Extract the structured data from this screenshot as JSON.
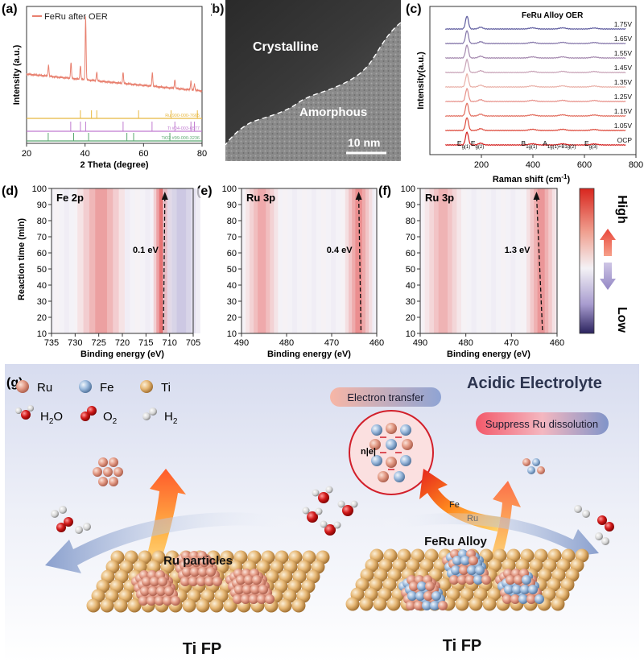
{
  "panel_labels": {
    "a": "(a)",
    "b": "(b)",
    "c": "(c)",
    "d": "(d)",
    "e": "(e)",
    "f": "(f)",
    "g": "(g)"
  },
  "chart_data": [
    {
      "id": "a",
      "type": "line",
      "xlabel": "2 Theta (degree)",
      "ylabel": "Intensity (a.u.)",
      "xlim": [
        20,
        80
      ],
      "xticks": [
        20,
        40,
        60,
        80
      ],
      "legend": "FeRu after OER",
      "legend_position": "top-left",
      "series_color": "#e8806f",
      "peaks": [
        {
          "x": 27.5,
          "y": 0.18
        },
        {
          "x": 35.2,
          "y": 0.26
        },
        {
          "x": 38.4,
          "y": 0.22
        },
        {
          "x": 40.2,
          "y": 1.0
        },
        {
          "x": 44.0,
          "y": 0.14
        },
        {
          "x": 53.0,
          "y": 0.18
        },
        {
          "x": 63.0,
          "y": 0.22
        },
        {
          "x": 70.7,
          "y": 0.14
        },
        {
          "x": 76.2,
          "y": 0.14
        },
        {
          "x": 77.4,
          "y": 0.1
        }
      ],
      "references": [
        {
          "name": "Ru 900-000-7665",
          "color": "#e8b840",
          "sticks": [
            38.4,
            42.2,
            44.0,
            58.3,
            69.4,
            78.4
          ]
        },
        {
          "name": "Ti #04-003-6577",
          "color": "#c07bd0",
          "sticks": [
            35.1,
            38.4,
            40.2,
            53.0,
            62.9,
            70.7,
            76.2,
            77.4
          ]
        },
        {
          "name": "TiO2 #99-000-3236",
          "color": "#5aa870",
          "sticks": [
            27.4,
            36.1,
            41.2,
            54.3,
            56.6,
            69.0
          ]
        }
      ]
    },
    {
      "id": "c",
      "type": "line",
      "title": "FeRu Alloy  OER",
      "xlabel": "Raman shift (cm-1)",
      "ylabel": "Intensity(a.u.)",
      "xlim": [
        0,
        800
      ],
      "xticks": [
        200,
        400,
        600,
        800
      ],
      "series": [
        {
          "name": "OCP",
          "color": "#d4201f"
        },
        {
          "name": "1.05V",
          "color": "#dd4a3c"
        },
        {
          "name": "1.15V",
          "color": "#e26d5e"
        },
        {
          "name": "1.25V",
          "color": "#e7918a"
        },
        {
          "name": "1.35V",
          "color": "#e9b0a8"
        },
        {
          "name": "1.45V",
          "color": "#c8a3b7"
        },
        {
          "name": "1.55V",
          "color": "#a488ae"
        },
        {
          "name": "1.65V",
          "color": "#8374a8"
        },
        {
          "name": "1.75V",
          "color": "#5e5c9f"
        }
      ],
      "peak_labels": [
        {
          "text": "Eg(1)",
          "x": 144
        },
        {
          "text": "Eg(2)",
          "x": 197
        },
        {
          "text": "B1g(1)",
          "x": 398
        },
        {
          "text": "A1g(1)+B1g(2)",
          "x": 515
        },
        {
          "text": "Eg(3)",
          "x": 638
        }
      ]
    },
    {
      "id": "d",
      "type": "heatmap",
      "title": "Fe 2p",
      "xlabel": "Binding energy (eV)",
      "ylabel": "Reaction time (min)",
      "xlim": [
        735,
        705
      ],
      "xticks": [
        735,
        730,
        725,
        720,
        715,
        710,
        705
      ],
      "ylim": [
        10,
        100
      ],
      "yticks": [
        10,
        20,
        30,
        40,
        50,
        60,
        70,
        80,
        90,
        100
      ],
      "annotation": "0.1 eV",
      "bands": [
        {
          "center": 724.5,
          "width": 2.5,
          "level": 0.45
        },
        {
          "center": 711.0,
          "width": 1.2,
          "level": 0.95
        },
        {
          "center": 707.5,
          "width": 2.0,
          "level": -0.45
        }
      ],
      "arrow": {
        "x_start": 711.3,
        "x_end": 711.0
      }
    },
    {
      "id": "e",
      "type": "heatmap",
      "title": "Ru 3p",
      "xlabel": "Binding energy (eV)",
      "xlim": [
        490,
        460
      ],
      "xticks": [
        490,
        480,
        470,
        460
      ],
      "ylim": [
        10,
        100
      ],
      "yticks": [
        10,
        20,
        30,
        40,
        50,
        60,
        70,
        80,
        90,
        100
      ],
      "annotation": "0.4 eV",
      "bands": [
        {
          "center": 485.5,
          "width": 1.8,
          "level": 0.4
        },
        {
          "center": 464.0,
          "width": 1.5,
          "level": 0.55
        }
      ],
      "arrow": {
        "x_start": 463.5,
        "x_end": 464.0
      }
    },
    {
      "id": "f",
      "type": "heatmap",
      "title": "Ru 3p",
      "xlabel": "Binding energy (eV)",
      "xlim": [
        490,
        460
      ],
      "xticks": [
        490,
        480,
        470,
        460
      ],
      "ylim": [
        10,
        100
      ],
      "yticks": [
        10,
        20,
        30,
        40,
        50,
        60,
        70,
        80,
        90,
        100
      ],
      "annotation": "1.3 eV",
      "bands": [
        {
          "center": 485.0,
          "width": 2.0,
          "level": 0.35
        },
        {
          "center": 463.5,
          "width": 1.6,
          "level": 0.5
        }
      ],
      "arrow": {
        "x_start": 463.2,
        "x_end": 464.5
      }
    }
  ],
  "panel_b": {
    "label_top": "Crystalline",
    "label_bottom": "Amorphous",
    "scale_bar": "10 nm"
  },
  "colorbar": {
    "high": "High",
    "low": "Low"
  },
  "panel_g": {
    "title": "Acidic Electrolyte",
    "legend": [
      {
        "label": "Ru",
        "color": "#e39a85"
      },
      {
        "label": "Fe",
        "color": "#8fb4d9"
      },
      {
        "label": "Ti",
        "color": "#e6b774"
      }
    ],
    "molecules": [
      {
        "label": "H",
        "sub": "2",
        "tail": "O"
      },
      {
        "label": "O",
        "sub": "2",
        "tail": ""
      },
      {
        "label": "H",
        "sub": "2",
        "tail": ""
      }
    ],
    "electron_transfer": "Electron transfer",
    "suppress": "Suppress Ru dissolution",
    "lattice_label": "n|e|",
    "fe_label": "Fe",
    "ru_label": "Ru",
    "left_particles": "Ru particles",
    "right_particles": "FeRu Alloy",
    "left_substrate": "Ti FP",
    "right_substrate": "Ti FP"
  }
}
